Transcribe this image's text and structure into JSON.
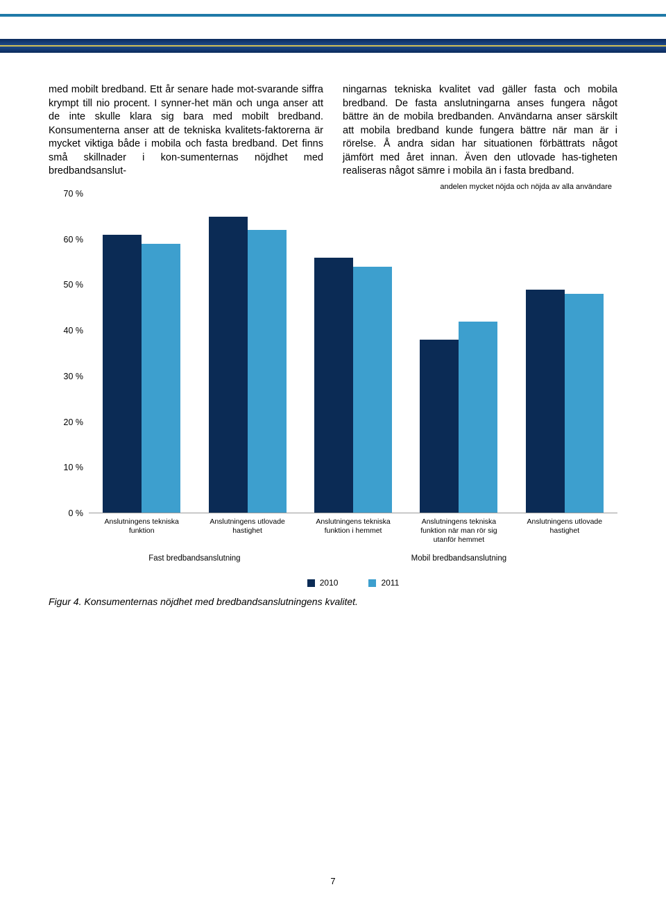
{
  "text": {
    "col1": "med mobilt bredband. Ett år senare hade mot-svarande siffra krympt till nio procent. I synner-het män och unga anser att de inte skulle klara sig bara med mobilt bredband.\n\nKonsumenterna anser att de tekniska kvalitets-faktorerna är mycket viktiga både i mobila och fasta bredband. Det finns små skillnader i kon-sumenternas nöjdhet med bredbandsanslut-",
    "col2": "ningarnas tekniska kvalitet vad gäller fasta och mobila bredband. De fasta anslutningarna anses fungera något bättre än de mobila bredbanden. Användarna anser särskilt att mobila bredband kunde fungera bättre när man är i rörelse. Å andra sidan har situationen förbättrats något jämfört med året innan. Även den utlovade has-tigheten realiseras något sämre i mobila än i fasta bredband."
  },
  "chart": {
    "type": "bar",
    "subtitle": "andelen mycket nöjda och nöjda av alla användare",
    "ymax": 70,
    "ymin": 0,
    "ytick_step": 10,
    "yticks": [
      70,
      60,
      50,
      40,
      30,
      20,
      10,
      0
    ],
    "yunit": " %",
    "series": [
      {
        "label": "2010",
        "color": "#0b2b55"
      },
      {
        "label": "2011",
        "color": "#3d9fce"
      }
    ],
    "categories": [
      {
        "label": "Anslutningens tekniska funktion",
        "values": [
          61,
          59
        ]
      },
      {
        "label": "Anslutningens utlovade hastighet",
        "values": [
          65,
          62
        ]
      },
      {
        "label": "Anslutningens tekniska funktion i hemmet",
        "values": [
          56,
          54
        ]
      },
      {
        "label": "Anslutningens tekniska funktion när man rör sig utanför hemmet",
        "values": [
          38,
          42
        ]
      },
      {
        "label": "Anslutningens utlovade hastighet",
        "values": [
          49,
          48
        ]
      }
    ],
    "super_categories": [
      {
        "label": "Fast bredbandsanslutning",
        "span": 2
      },
      {
        "label": "Mobil bredbandsanslutning",
        "span": 3
      }
    ],
    "caption": "Figur 4. Konsumenternas nöjdhet med bredbandsanslutningens kvalitet."
  },
  "page_number": "7"
}
